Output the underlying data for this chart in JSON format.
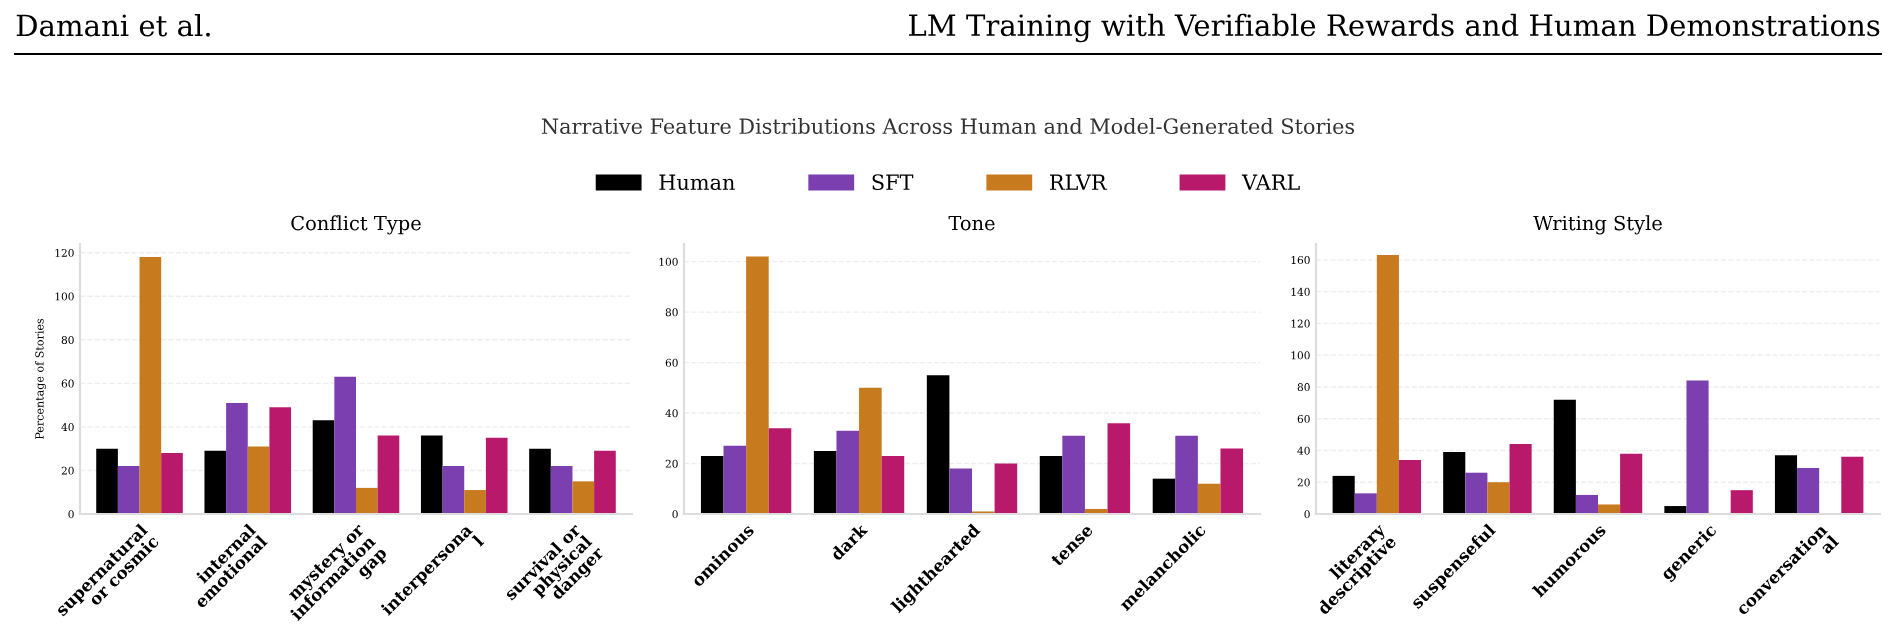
{
  "chart_data": [
    {
      "type": "bar",
      "title": "Conflict Type",
      "ylabel": "Percentage of Stories",
      "annotations": [
        "Damani et al.",
        "LM Training with Verifiable Rewards and Human Demonstrations",
        "Narrative Feature Distributions Across Human and Model-Generated Stories"
      ],
      "categories": [
        "supernatural\nor cosmic",
        "internal\nemotional",
        "mystery or\ninformation\ngap",
        "interpersona\nl",
        "survival or\nphysical\ndanger"
      ],
      "series": [
        {
          "name": "Human",
          "color": "#000000",
          "values": [
            30,
            29,
            43,
            36,
            30
          ]
        },
        {
          "name": "SFT",
          "color": "#7b3fb0",
          "values": [
            22,
            51,
            63,
            22,
            22
          ]
        },
        {
          "name": "RLVR",
          "color": "#c87a1e",
          "values": [
            118,
            31,
            12,
            11,
            15
          ]
        },
        {
          "name": "VARL",
          "color": "#b8196b",
          "values": [
            28,
            49,
            36,
            35,
            29
          ]
        }
      ],
      "ylim": [
        0,
        124
      ],
      "yticks": [
        0,
        20,
        40,
        60,
        80,
        100,
        120
      ],
      "grid": "y",
      "legend": "top"
    },
    {
      "type": "bar",
      "title": "Tone",
      "categories": [
        "ominous",
        "dark",
        "lighthearted",
        "tense",
        "melancholic"
      ],
      "series": [
        {
          "color": "#000000",
          "values": [
            23,
            25,
            55,
            23,
            14
          ]
        },
        {
          "color": "#7b3fb0",
          "values": [
            27,
            33,
            18,
            31,
            31
          ]
        },
        {
          "color": "#c87a1e",
          "values": [
            102,
            50,
            1,
            2,
            12
          ]
        },
        {
          "color": "#b8196b",
          "values": [
            34,
            23,
            20,
            36,
            26
          ]
        }
      ],
      "ylim": [
        0,
        107
      ],
      "yticks": [
        0,
        20,
        40,
        60,
        80,
        100
      ],
      "grid": "y"
    },
    {
      "type": "bar",
      "title": "Writing Style",
      "categories": [
        "literary\ndescriptive",
        "suspenseful",
        "humorous",
        "generic",
        "conversation\nal"
      ],
      "series": [
        {
          "color": "#000000",
          "values": [
            24,
            39,
            72,
            5,
            37
          ]
        },
        {
          "color": "#7b3fb0",
          "values": [
            13,
            26,
            12,
            84,
            29
          ]
        },
        {
          "color": "#c87a1e",
          "values": [
            163,
            20,
            6,
            0,
            0
          ]
        },
        {
          "color": "#b8196b",
          "values": [
            34,
            44,
            38,
            15,
            36
          ]
        }
      ],
      "ylim": [
        0,
        170
      ],
      "yticks": [
        0,
        20,
        40,
        60,
        80,
        100,
        120,
        140,
        160
      ],
      "grid": "y"
    }
  ]
}
